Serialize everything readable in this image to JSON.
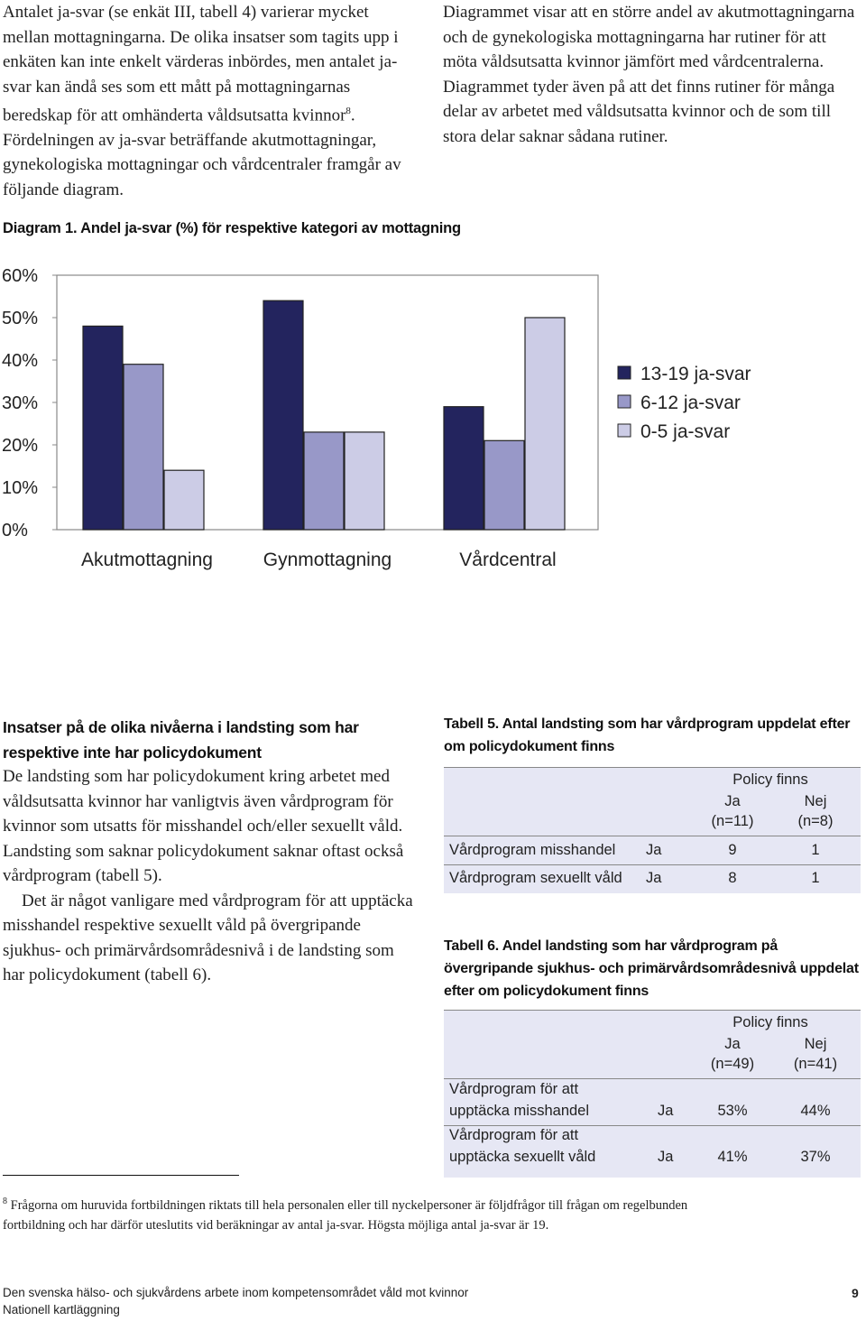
{
  "intro": {
    "left_text": "Antalet ja-svar (se enkät III, tabell 4) varierar mycket mellan mottagningarna. De olika insatser som tagits upp i enkäten kan inte enkelt värderas inbördes, men antalet ja-svar kan ändå ses som ett mått på mottagningarnas beredskap för att omhänderta våldsutsatta kvinnor",
    "left_sup": "8",
    "left_text_cont": ". Fördelningen av ja-svar beträffande akutmottagningar, gynekologiska mottagningar och vårdcentraler framgår av följande diagram.",
    "right_text": "Diagrammet visar att en större andel av akutmottagningarna och de gynekologiska mottagningarna har rutiner för att möta våldsutsatta kvinnor jämfört med vårdcentralerna. Diagrammet tyder även på att det finns rutiner för många delar av arbetet med våldsutsatta kvinnor och de som till stora delar saknar sådana rutiner."
  },
  "diagram": {
    "label": "Diagram 1.",
    "title": "Andel ja-svar (%) för respektive kategori av mottagning"
  },
  "chart_data": {
    "type": "bar",
    "title": "Andel ja-svar (%) för respektive kategori av mottagning",
    "categories": [
      "Akutmottagning",
      "Gynmottagning",
      "Vårdcentral"
    ],
    "series": [
      {
        "name": "13-19 ja-svar",
        "values": [
          48,
          54,
          29
        ],
        "color": "#23245e"
      },
      {
        "name": "6-12 ja-svar",
        "values": [
          39,
          23,
          21
        ],
        "color": "#9898c8"
      },
      {
        "name": "0-5 ja-svar",
        "values": [
          14,
          23,
          50
        ],
        "color": "#ccccE6"
      }
    ],
    "ylim": [
      0,
      60
    ],
    "yticks": [
      0,
      10,
      20,
      30,
      40,
      50,
      60
    ],
    "ytick_labels": [
      "0%",
      "10%",
      "20%",
      "30%",
      "40%",
      "50%",
      "60%"
    ],
    "xlabel": "",
    "ylabel": "",
    "legend_position": "right"
  },
  "section": {
    "heading": "Insatser på de olika nivåerna i landsting som har respektive inte har policydokument",
    "para1": "De landsting som har policydokument kring arbetet med våldsutsatta kvinnor har vanligtvis även vårdprogram för kvinnor som utsatts för misshandel och/eller sexuellt våld. Landsting som saknar policydokument saknar oftast också vårdprogram (tabell 5).",
    "para2": "Det är något vanligare med vårdprogram för att upptäcka misshandel respektive sexuellt våld på övergripande sjukhus- och primärvårdsområdesnivå i de landsting som har policydokument (tabell 6)."
  },
  "table5": {
    "label": "Tabell 5.",
    "title": "Antal landsting som har vårdprogram uppdelat efter om policydokument finns",
    "group_header": "Policy finns",
    "col_ja": "Ja",
    "col_ja_n": "(n=11)",
    "col_nej": "Nej",
    "col_nej_n": "(n=8)",
    "rows": [
      {
        "label": "Vårdprogram misshandel",
        "answer": "Ja",
        "ja": "9",
        "nej": "1"
      },
      {
        "label": "Vårdprogram sexuellt våld",
        "answer": "Ja",
        "ja": "8",
        "nej": "1"
      }
    ]
  },
  "table6": {
    "label": "Tabell 6.",
    "title": "Andel landsting som har vårdprogram på övergripande sjukhus- och primärvårdsområdesnivå uppdelat efter om policydokument finns",
    "group_header": "Policy finns",
    "col_ja": "Ja",
    "col_ja_n": "(n=49)",
    "col_nej": "Nej",
    "col_nej_n": "(n=41)",
    "rows": [
      {
        "label1": "Vårdprogram för att",
        "label2": "upptäcka misshandel",
        "answer": "Ja",
        "ja": "53%",
        "nej": "44%"
      },
      {
        "label1": "Vårdprogram för att",
        "label2": "upptäcka sexuellt våld",
        "answer": "Ja",
        "ja": "41%",
        "nej": "37%"
      }
    ]
  },
  "footnote": {
    "marker": "8",
    "text": "Frågorna om huruvida fortbildningen riktats till hela personalen eller till nyckelpersoner är följdfrågor till frågan om regelbunden fortbildning och har därför uteslutits vid beräkningar av antal ja-svar. Högsta möjliga antal ja-svar är 19."
  },
  "footer": {
    "line1": "Den svenska hälso- och sjukvårdens arbete inom kompetensområdet våld mot kvinnor",
    "line2": "Nationell kartläggning",
    "page_number": "9"
  }
}
